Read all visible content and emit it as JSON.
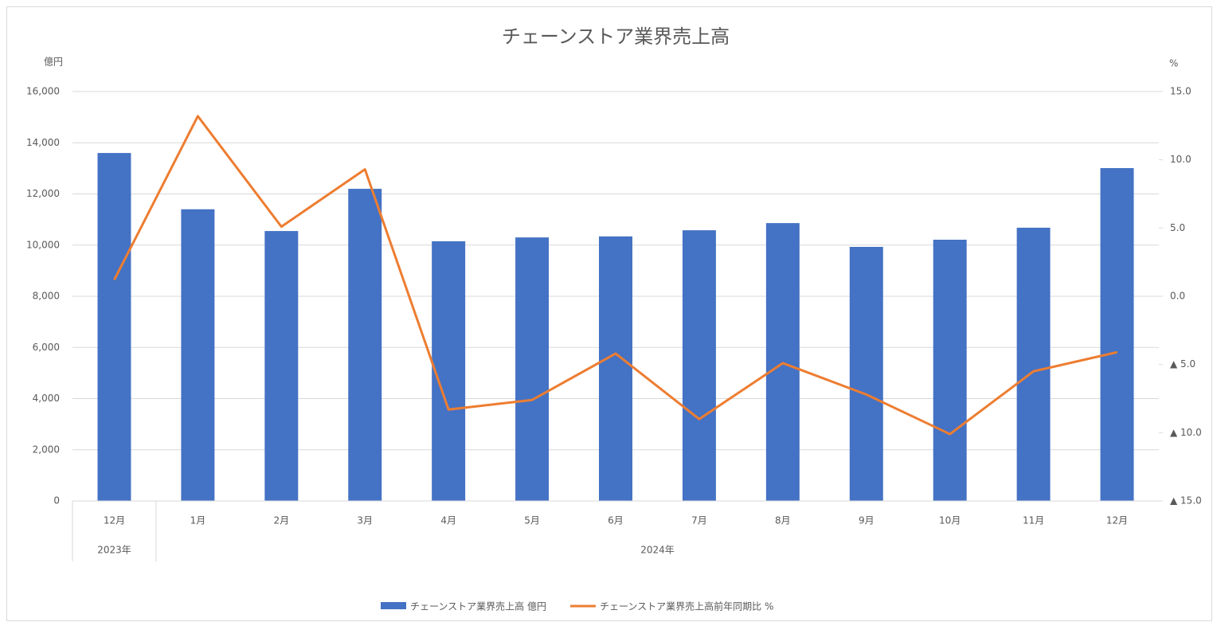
{
  "chart_data": {
    "type": "bar-line",
    "title": "チェーンストア業界売上高",
    "y_label": "億円",
    "y2_label": "%",
    "categories": [
      "12月",
      "1月",
      "2月",
      "3月",
      "4月",
      "5月",
      "6月",
      "7月",
      "8月",
      "9月",
      "10月",
      "11月",
      "12月"
    ],
    "category_groups": [
      "2023年",
      "2024年",
      null,
      null,
      null,
      null,
      null,
      null,
      null,
      null,
      null,
      null,
      null
    ],
    "series": [
      {
        "name": "チェーンストア業界売上高 億円",
        "type": "bar",
        "color": "#4472c4",
        "values": [
          13600,
          11400,
          10550,
          12200,
          10150,
          10300,
          10340,
          10580,
          10860,
          9930,
          10210,
          10680,
          13010
        ]
      },
      {
        "name": "チェーンストア業界売上高前年同期比 %",
        "type": "line",
        "axis": "y2",
        "color": "#ed7d31",
        "values": [
          1.2,
          13.2,
          5.1,
          9.3,
          -8.3,
          -7.6,
          -4.2,
          -9.0,
          -4.9,
          -7.2,
          -10.1,
          -5.5,
          -4.1
        ]
      }
    ],
    "ylim": [
      0,
      16000
    ],
    "yticks": [
      0,
      {
        "value": 2000,
        "label": "2,000"
      },
      {
        "value": 4000,
        "label": "4,000"
      },
      {
        "value": 6000,
        "label": "6,000"
      },
      {
        "value": 8000,
        "label": "8,000"
      },
      {
        "value": 10000,
        "label": "10,000"
      },
      {
        "value": 12000,
        "label": "12,000"
      },
      {
        "value": 14000,
        "label": "14,000"
      },
      {
        "value": 16000,
        "label": "16,000"
      }
    ],
    "y2lim": [
      -15,
      15
    ],
    "y2ticks": [
      {
        "value": -15,
        "label": "▲ 15.0"
      },
      {
        "value": -10,
        "label": "▲ 10.0"
      },
      {
        "value": -5,
        "label": "▲ 5.0"
      },
      {
        "value": 0,
        "label": "0.0"
      },
      {
        "value": 5,
        "label": "5.0"
      },
      {
        "value": 10,
        "label": "10.0"
      },
      {
        "value": 15,
        "label": "15.0"
      }
    ],
    "grid": true,
    "legend": "bottom"
  }
}
